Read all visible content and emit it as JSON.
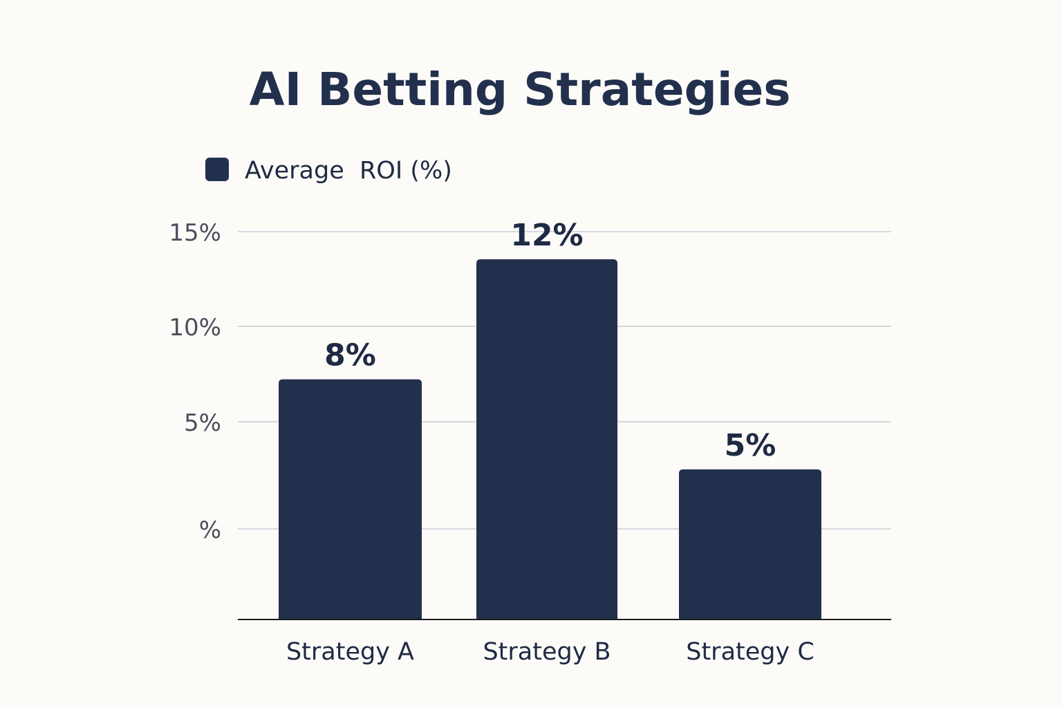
{
  "chart_data": {
    "type": "bar",
    "title": "AI Betting Strategies",
    "xlabel": "",
    "ylabel": "",
    "categories": [
      "Strategy A",
      "Strategy B",
      "Strategy C"
    ],
    "series": [
      {
        "name": "Average  ROI (%)",
        "values": [
          8,
          12,
          5
        ],
        "data_labels": [
          "8%",
          "12%",
          "5%"
        ]
      }
    ],
    "y_tick_labels": [
      "15%",
      "10%",
      "5%",
      "%"
    ],
    "ylim": [
      0,
      15
    ],
    "grid": true,
    "legend_position": "top-left",
    "colors": {
      "bar": "#22304d",
      "grid": "#c9ccd6",
      "axis": "#1a1a1a",
      "background": "#fcfbf8"
    }
  }
}
